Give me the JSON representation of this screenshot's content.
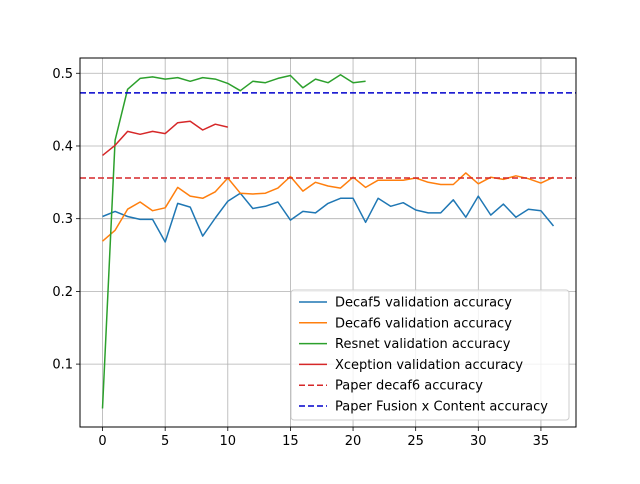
{
  "chart_data": {
    "type": "line",
    "title": "",
    "xlabel": "",
    "ylabel": "",
    "xlim": [
      -1.8,
      37.8
    ],
    "ylim": [
      0.0135,
      0.521
    ],
    "grid": true,
    "legend_position": "bottom-right",
    "x_ticks": [
      0,
      5,
      10,
      15,
      20,
      25,
      30,
      35
    ],
    "y_ticks": [
      0.1,
      0.2,
      0.3,
      0.4,
      0.5
    ],
    "series": [
      {
        "name": "Decaf5 validation accuracy",
        "color": "#1f77b4",
        "style": "solid",
        "x": [
          0,
          1,
          2,
          3,
          4,
          5,
          6,
          7,
          8,
          9,
          10,
          11,
          12,
          13,
          14,
          15,
          16,
          17,
          18,
          19,
          20,
          21,
          22,
          23,
          24,
          25,
          26,
          27,
          28,
          29,
          30,
          31,
          32,
          33,
          34,
          35,
          36
        ],
        "values": [
          0.303,
          0.31,
          0.303,
          0.299,
          0.299,
          0.268,
          0.321,
          0.316,
          0.276,
          0.301,
          0.324,
          0.335,
          0.314,
          0.317,
          0.323,
          0.298,
          0.31,
          0.308,
          0.321,
          0.328,
          0.328,
          0.295,
          0.328,
          0.317,
          0.322,
          0.312,
          0.308,
          0.308,
          0.326,
          0.302,
          0.331,
          0.305,
          0.32,
          0.302,
          0.313,
          0.311,
          0.29
        ]
      },
      {
        "name": "Decaf6 validation accuracy",
        "color": "#ff7f0e",
        "style": "solid",
        "x": [
          0,
          1,
          2,
          3,
          4,
          5,
          6,
          7,
          8,
          9,
          10,
          11,
          12,
          13,
          14,
          15,
          16,
          17,
          18,
          19,
          20,
          21,
          22,
          23,
          24,
          25,
          26,
          27,
          28,
          29,
          30,
          31,
          32,
          33,
          34,
          35,
          36
        ],
        "values": [
          0.269,
          0.284,
          0.313,
          0.323,
          0.311,
          0.315,
          0.343,
          0.331,
          0.328,
          0.337,
          0.356,
          0.335,
          0.334,
          0.335,
          0.342,
          0.358,
          0.338,
          0.35,
          0.345,
          0.342,
          0.357,
          0.343,
          0.353,
          0.353,
          0.353,
          0.356,
          0.35,
          0.347,
          0.347,
          0.363,
          0.348,
          0.357,
          0.354,
          0.359,
          0.355,
          0.349,
          0.357
        ]
      },
      {
        "name": "Resnet validation accuracy",
        "color": "#2ca02c",
        "style": "solid",
        "x": [
          0,
          1,
          2,
          3,
          4,
          5,
          6,
          7,
          8,
          9,
          10,
          11,
          12,
          13,
          14,
          15,
          16,
          17,
          18,
          19,
          20,
          21
        ],
        "values": [
          0.039,
          0.408,
          0.478,
          0.493,
          0.495,
          0.492,
          0.494,
          0.489,
          0.494,
          0.492,
          0.486,
          0.476,
          0.489,
          0.487,
          0.493,
          0.497,
          0.48,
          0.492,
          0.487,
          0.498,
          0.487,
          0.489
        ]
      },
      {
        "name": "Xception validation accuracy",
        "color": "#d62728",
        "style": "solid",
        "x": [
          0,
          1,
          2,
          3,
          4,
          5,
          6,
          7,
          8,
          9,
          10
        ],
        "values": [
          0.387,
          0.401,
          0.42,
          0.416,
          0.42,
          0.417,
          0.432,
          0.434,
          0.422,
          0.43,
          0.426
        ]
      },
      {
        "name": "Paper decaf6 accuracy",
        "color": "#d62728",
        "style": "dashed",
        "constant": 0.356
      },
      {
        "name": "Paper Fusion x Content accuracy",
        "color": "#0000cc",
        "style": "dashed",
        "constant": 0.473
      }
    ]
  }
}
